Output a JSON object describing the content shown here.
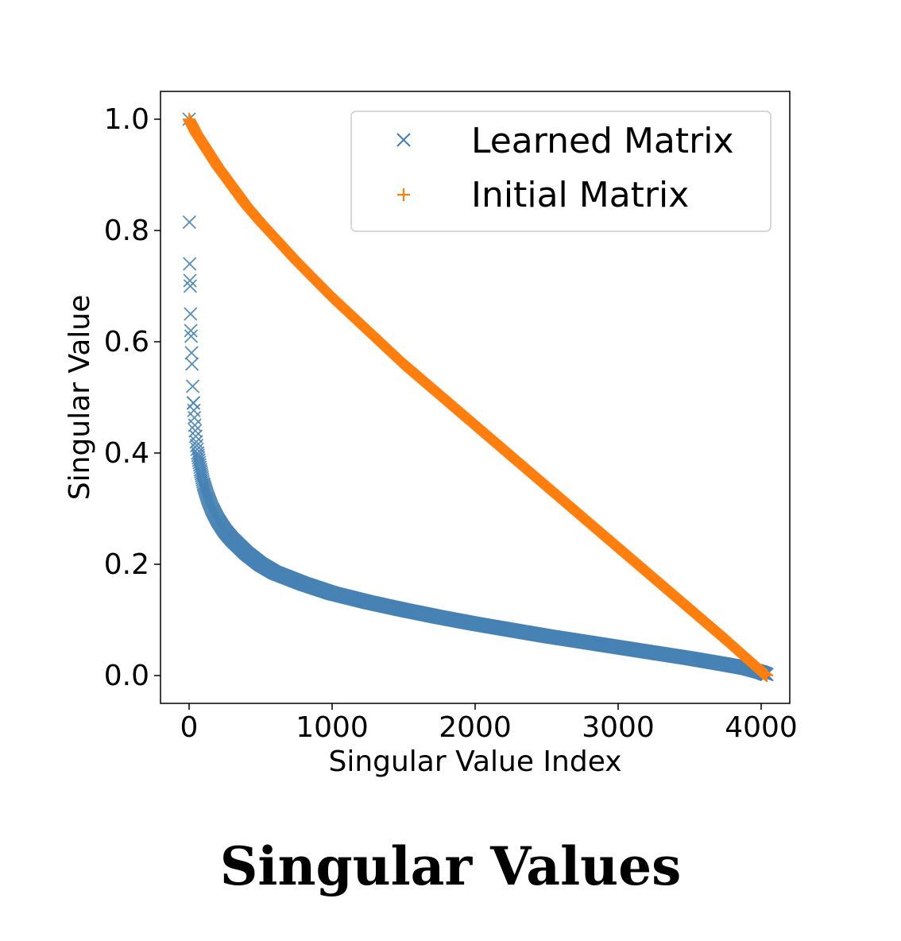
{
  "chart_data": {
    "type": "scatter",
    "title": "Singular Values",
    "xlabel": "Singular Value Index",
    "ylabel": "Singular Value",
    "xlim": [
      -200,
      4200
    ],
    "ylim": [
      -0.05,
      1.05
    ],
    "xticks": [
      0,
      1000,
      2000,
      3000,
      4000
    ],
    "xtick_labels": [
      "0",
      "1000",
      "2000",
      "3000",
      "4000"
    ],
    "yticks": [
      0.0,
      0.2,
      0.4,
      0.6,
      0.8,
      1.0
    ],
    "ytick_labels": [
      "0.0",
      "0.2",
      "0.4",
      "0.6",
      "0.8",
      "1.0"
    ],
    "grid": false,
    "legend_position": "top-right",
    "series": [
      {
        "name": "Learned Matrix",
        "marker": "x",
        "color": "#4682b4",
        "x": [
          0,
          2,
          4,
          6,
          8,
          10,
          12,
          14,
          17,
          20,
          25,
          30,
          40,
          50,
          60,
          80,
          100,
          130,
          160,
          200,
          250,
          300,
          400,
          500,
          600,
          800,
          1000,
          1250,
          1500,
          1750,
          2000,
          2250,
          2500,
          2750,
          3000,
          3250,
          3500,
          3750,
          3900,
          4000,
          4040
        ],
        "y": [
          1.0,
          0.815,
          0.74,
          0.71,
          0.7,
          0.65,
          0.62,
          0.61,
          0.58,
          0.56,
          0.52,
          0.49,
          0.45,
          0.42,
          0.4,
          0.37,
          0.345,
          0.32,
          0.3,
          0.28,
          0.26,
          0.245,
          0.22,
          0.2,
          0.185,
          0.165,
          0.148,
          0.132,
          0.118,
          0.105,
          0.093,
          0.082,
          0.071,
          0.061,
          0.051,
          0.041,
          0.031,
          0.02,
          0.013,
          0.006,
          0.002
        ]
      },
      {
        "name": "Initial Matrix",
        "marker": "+",
        "color": "#ff7f0e",
        "x": [
          0,
          50,
          100,
          200,
          300,
          400,
          500,
          750,
          1000,
          1250,
          1500,
          1750,
          2000,
          2250,
          2500,
          2750,
          3000,
          3250,
          3500,
          3750,
          4000,
          4040
        ],
        "y": [
          1.0,
          0.975,
          0.955,
          0.915,
          0.88,
          0.845,
          0.815,
          0.745,
          0.68,
          0.62,
          0.56,
          0.505,
          0.45,
          0.395,
          0.34,
          0.285,
          0.23,
          0.175,
          0.12,
          0.065,
          0.008,
          0.0
        ]
      }
    ]
  }
}
